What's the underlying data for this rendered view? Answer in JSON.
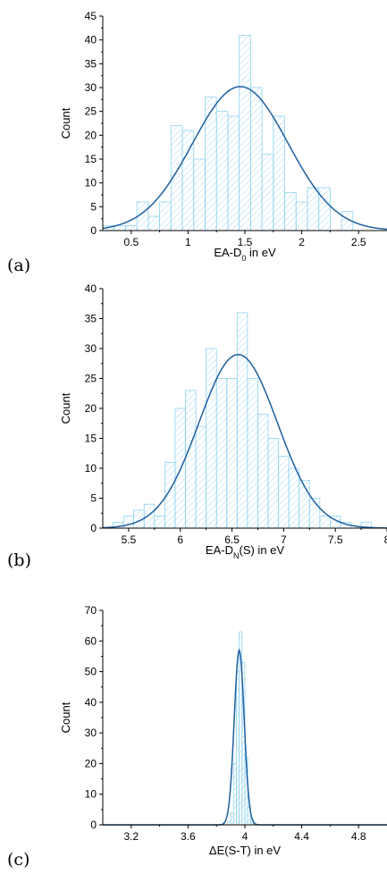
{
  "chart_data": [
    {
      "type": "bar",
      "panel_label": "(a)",
      "xlabel": "EA-D",
      "xlabel_sub": "0",
      "xlabel_suffix": " in eV",
      "ylabel": "Count",
      "xlim": [
        0.25,
        2.75
      ],
      "ylim": [
        0,
        45
      ],
      "xticks": [
        0.5,
        1,
        1.5,
        2,
        2.5
      ],
      "xtick_labels": [
        "0.5",
        "1",
        "1.5",
        "2",
        "2.5"
      ],
      "yticks": [
        0,
        5,
        10,
        15,
        20,
        25,
        30,
        35,
        40,
        45
      ],
      "bin_width": 0.1,
      "bins_x": [
        0.3,
        0.4,
        0.5,
        0.6,
        0.7,
        0.8,
        0.9,
        1.0,
        1.1,
        1.2,
        1.3,
        1.4,
        1.5,
        1.6,
        1.7,
        1.8,
        1.9,
        2.0,
        2.1,
        2.2,
        2.3,
        2.4,
        2.5
      ],
      "counts": [
        1,
        1,
        1,
        6,
        3,
        6,
        22,
        21,
        15,
        28,
        25,
        24,
        41,
        30,
        16,
        24,
        8,
        6,
        9,
        9,
        0,
        4,
        0
      ],
      "fit": {
        "mean": 1.46,
        "sigma": 0.42,
        "peak": 30.2
      }
    },
    {
      "type": "bar",
      "panel_label": "(b)",
      "xlabel": "EA-D",
      "xlabel_sub": "N",
      "xlabel_suffix": "(S) in eV",
      "ylabel": "Count",
      "xlim": [
        5.25,
        8.0
      ],
      "ylim": [
        0,
        40
      ],
      "xticks": [
        5.5,
        6,
        6.5,
        7,
        7.5,
        8
      ],
      "xtick_labels": [
        "5.5",
        "6",
        "6.5",
        "7",
        "7.5",
        "8"
      ],
      "yticks": [
        0,
        5,
        10,
        15,
        20,
        25,
        30,
        35,
        40
      ],
      "bin_width": 0.1,
      "bins_x": [
        5.3,
        5.4,
        5.5,
        5.6,
        5.7,
        5.8,
        5.9,
        6.0,
        6.1,
        6.2,
        6.3,
        6.4,
        6.5,
        6.6,
        6.7,
        6.8,
        6.9,
        7.0,
        7.1,
        7.2,
        7.3,
        7.4,
        7.5,
        7.6,
        7.7,
        7.8
      ],
      "counts": [
        0,
        1,
        2,
        3,
        4,
        2,
        11,
        20,
        23,
        17,
        30,
        25,
        25,
        36,
        25,
        19,
        15,
        12,
        10,
        8,
        5,
        2,
        2,
        1,
        0,
        1
      ],
      "fit": {
        "mean": 6.56,
        "sigma": 0.38,
        "peak": 29
      }
    },
    {
      "type": "bar",
      "panel_label": "(c)",
      "xlabel": "ΔE(S-T) in eV",
      "ylabel": "Count",
      "xlim": [
        3.0,
        5.0
      ],
      "ylim": [
        0,
        70
      ],
      "xticks": [
        3.2,
        3.6,
        4,
        4.4,
        4.8
      ],
      "xtick_labels": [
        "3.2",
        "3.6",
        "4",
        "4.4",
        "4.8"
      ],
      "yticks": [
        0,
        10,
        20,
        30,
        40,
        50,
        60,
        70
      ],
      "bin_width": 0.02,
      "bins_x": [
        3.89,
        3.91,
        3.93,
        3.95,
        3.97,
        3.99,
        4.01,
        4.03,
        4.05
      ],
      "counts": [
        1,
        4,
        20,
        50,
        63,
        53,
        22,
        6,
        2
      ],
      "fit": {
        "mean": 3.96,
        "sigma": 0.035,
        "peak": 57
      }
    }
  ]
}
